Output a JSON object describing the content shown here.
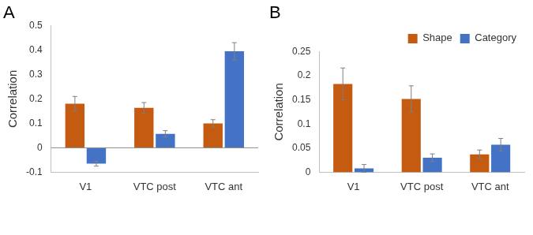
{
  "chart_data": [
    {
      "type": "bar",
      "title": "A",
      "categories": [
        "V1",
        "VTC post",
        "VTC ant"
      ],
      "y_label": "Correlation",
      "series": [
        {
          "name": "Shape",
          "color": "#c55a11",
          "values": [
            0.18,
            0.163,
            0.1
          ],
          "errors": [
            0.03,
            0.022,
            0.015
          ]
        },
        {
          "name": "Category",
          "color": "#4472c4",
          "values": [
            -0.065,
            0.057,
            0.395
          ],
          "errors": [
            0.01,
            0.013,
            0.035
          ]
        }
      ],
      "ylim": [
        -0.1,
        0.5
      ],
      "yticks": [
        -0.1,
        0,
        0.1,
        0.2,
        0.3,
        0.4,
        0.5
      ],
      "grid": false
    },
    {
      "type": "bar",
      "title": "B",
      "categories": [
        "V1",
        "VTC post",
        "VTC ant"
      ],
      "y_label": "Correlation",
      "series": [
        {
          "name": "Shape",
          "color": "#c55a11",
          "values": [
            0.183,
            0.152,
            0.037
          ],
          "errors": [
            0.033,
            0.027,
            0.009
          ]
        },
        {
          "name": "Category",
          "color": "#4472c4",
          "values": [
            0.008,
            0.03,
            0.057
          ],
          "errors": [
            0.008,
            0.008,
            0.013
          ]
        }
      ],
      "ylim": [
        0,
        0.25
      ],
      "yticks": [
        0,
        0.05,
        0.1,
        0.15,
        0.2,
        0.25
      ],
      "grid": false,
      "legend": "top-right"
    }
  ]
}
